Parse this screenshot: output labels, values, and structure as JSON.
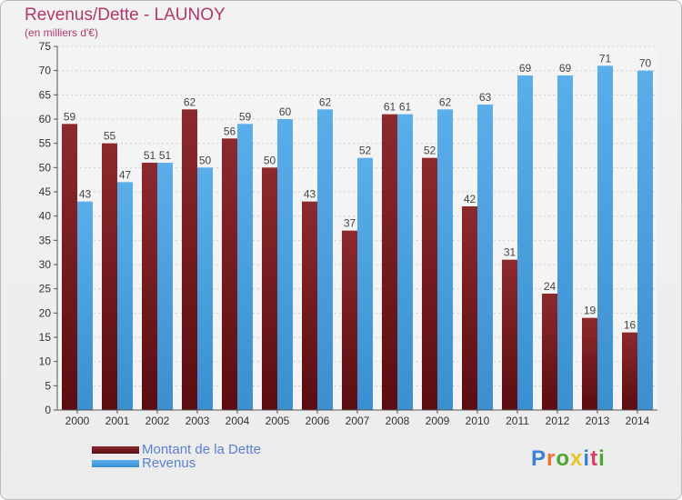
{
  "page": {
    "title": "Revenus/Dette - LAUNOY",
    "subtitle": "(en milliers d'€)",
    "logo_letters": [
      "P",
      "r",
      "o",
      "x",
      "i",
      "t",
      "i"
    ],
    "logo_colors": [
      "#3b7fd6",
      "#e8732e",
      "#4aa62e",
      "#e8c42e",
      "#3b7fd6",
      "#d43f6b",
      "#4aa62e"
    ]
  },
  "chart_data": {
    "type": "bar",
    "categories": [
      "2000",
      "2001",
      "2002",
      "2003",
      "2004",
      "2005",
      "2006",
      "2007",
      "2008",
      "2009",
      "2010",
      "2011",
      "2012",
      "2013",
      "2014"
    ],
    "series": [
      {
        "name": "Montant de la Dette",
        "color": "#7a1e22",
        "values": [
          59,
          55,
          51,
          62,
          56,
          50,
          43,
          37,
          61,
          52,
          42,
          31,
          24,
          19,
          16
        ]
      },
      {
        "name": "Revenus",
        "color": "#4da3e3",
        "values": [
          43,
          47,
          51,
          50,
          59,
          60,
          62,
          52,
          61,
          62,
          63,
          69,
          69,
          71,
          70
        ]
      }
    ],
    "ylim": [
      0,
      75
    ],
    "yticks": [
      0,
      5,
      10,
      15,
      20,
      25,
      30,
      35,
      40,
      45,
      50,
      55,
      60,
      65,
      70,
      75
    ],
    "grid": true,
    "legend": "bottom-left"
  }
}
